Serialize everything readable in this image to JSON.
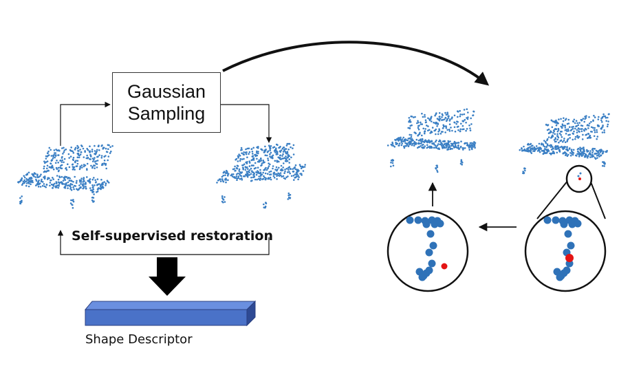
{
  "diagram": {
    "sampling_box": {
      "line1": "Gaussian",
      "line2": "Sampling"
    },
    "restoration_label": "Self-supervised restoration",
    "descriptor_label": "Shape Descriptor"
  },
  "colors": {
    "point_blue": "#3a7fc4",
    "zoom_blue": "#2f72b8",
    "highlight_red": "#e41414",
    "descriptor_top": "#5a7fd0",
    "descriptor_front": "#4a6fc4",
    "descriptor_side": "#2e4a94",
    "line": "#111111"
  }
}
